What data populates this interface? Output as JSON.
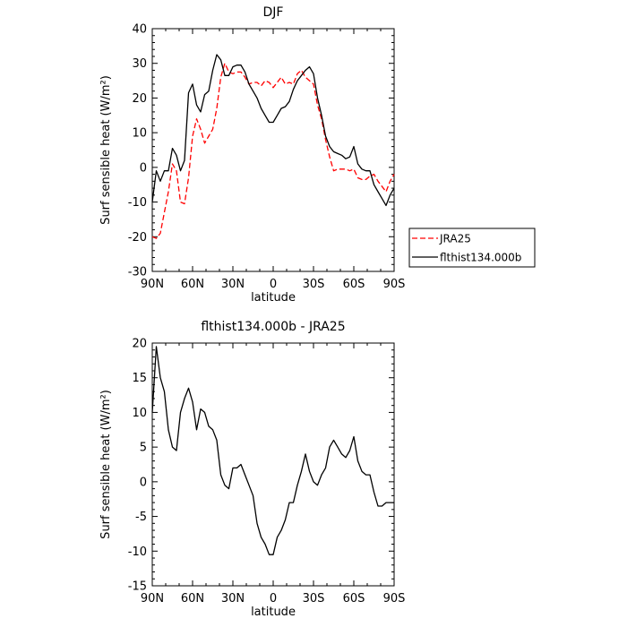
{
  "chart_data": [
    {
      "type": "line",
      "title": "DJF",
      "xlabel": "latitude",
      "ylabel": "Surf sensible heat (W/m²)",
      "xticklabels": [
        "90N",
        "60N",
        "30N",
        "0",
        "30S",
        "60S",
        "90S"
      ],
      "xlim": [
        90,
        -90
      ],
      "ylim": [
        -30,
        40
      ],
      "yticks": [
        -30,
        -20,
        -10,
        0,
        10,
        20,
        30,
        40
      ],
      "legend": "outside-right",
      "series": [
        {
          "name": "JRA25",
          "color": "#ff0000",
          "dash": "dashed",
          "x": [
            90,
            87,
            84,
            81,
            78,
            75,
            72,
            69,
            66,
            63,
            60,
            57,
            54,
            51,
            48,
            45,
            42,
            39,
            36,
            33,
            30,
            27,
            24,
            21,
            18,
            15,
            12,
            9,
            6,
            3,
            0,
            -3,
            -6,
            -9,
            -12,
            -15,
            -18,
            -21,
            -24,
            -27,
            -30,
            -33,
            -36,
            -39,
            -42,
            -45,
            -48,
            -51,
            -54,
            -57,
            -60,
            -63,
            -66,
            -69,
            -72,
            -75,
            -78,
            -81,
            -84,
            -87,
            -90
          ],
          "y": [
            -20,
            -20.5,
            -19,
            -13,
            -7,
            1,
            -1,
            -10,
            -10.5,
            -3,
            9,
            14,
            11,
            7,
            9,
            11,
            17,
            26,
            30,
            27.5,
            27,
            27.5,
            27.5,
            26,
            24,
            24.5,
            24.5,
            23.5,
            25,
            24.5,
            23,
            24.5,
            26,
            24,
            24.5,
            24,
            27,
            28,
            26,
            25,
            24,
            18,
            14,
            8,
            3,
            -1,
            -0.5,
            -0.5,
            -0.5,
            -1,
            -0.5,
            -3,
            -3.5,
            -3.5,
            -2.5,
            -2,
            -4,
            -5.5,
            -7,
            -4,
            -2
          ]
        },
        {
          "name": "flthist134.000b",
          "color": "#000000",
          "dash": "solid",
          "x": [
            90,
            87,
            84,
            81,
            78,
            75,
            72,
            69,
            66,
            63,
            60,
            57,
            54,
            51,
            48,
            45,
            42,
            39,
            36,
            33,
            30,
            27,
            24,
            21,
            18,
            15,
            12,
            9,
            6,
            3,
            0,
            -3,
            -6,
            -9,
            -12,
            -15,
            -18,
            -21,
            -24,
            -27,
            -30,
            -33,
            -36,
            -39,
            -42,
            -45,
            -48,
            -51,
            -54,
            -57,
            -60,
            -63,
            -66,
            -69,
            -72,
            -75,
            -78,
            -81,
            -84,
            -87,
            -90
          ],
          "y": [
            -10,
            -1,
            -4,
            -1,
            -1,
            5.5,
            3.5,
            -1,
            2,
            21.5,
            24,
            18,
            16,
            21,
            22,
            28,
            32.5,
            31,
            26.5,
            26.5,
            29,
            29.5,
            29.5,
            27.5,
            24,
            22,
            20,
            17,
            15,
            13,
            13,
            15,
            17,
            17.5,
            19,
            22.5,
            25,
            26.5,
            28,
            29,
            27,
            20,
            15,
            9,
            6,
            4.5,
            4,
            3.5,
            2.5,
            3,
            6,
            1,
            -0.5,
            -1,
            -1,
            -5,
            -7,
            -9,
            -11,
            -8,
            -6
          ]
        }
      ]
    },
    {
      "type": "line",
      "title": "flthist134.000b - JRA25",
      "xlabel": "latitude",
      "ylabel": "Surf sensible heat (W/m²)",
      "xticklabels": [
        "90N",
        "60N",
        "30N",
        "0",
        "30S",
        "60S",
        "90S"
      ],
      "xlim": [
        90,
        -90
      ],
      "ylim": [
        -15,
        20
      ],
      "yticks": [
        -15,
        -10,
        -5,
        0,
        5,
        10,
        15,
        20
      ],
      "series": [
        {
          "color": "#000000",
          "dash": "solid",
          "x": [
            90,
            87,
            84,
            81,
            78,
            75,
            72,
            69,
            66,
            63,
            60,
            57,
            54,
            51,
            48,
            45,
            42,
            39,
            36,
            33,
            30,
            27,
            24,
            21,
            18,
            15,
            12,
            9,
            6,
            3,
            0,
            -3,
            -6,
            -9,
            -12,
            -15,
            -18,
            -21,
            -24,
            -27,
            -30,
            -33,
            -36,
            -39,
            -42,
            -45,
            -48,
            -51,
            -54,
            -57,
            -60,
            -63,
            -66,
            -69,
            -72,
            -75,
            -78,
            -81,
            -84,
            -87,
            -90
          ],
          "y": [
            10,
            19.5,
            15,
            13,
            7.5,
            5,
            4.5,
            10,
            12,
            13.5,
            11.5,
            7.5,
            10.5,
            10,
            8,
            7.5,
            6,
            1,
            -0.5,
            -1,
            2,
            2,
            2.5,
            1,
            -0.5,
            -2,
            -6,
            -8,
            -9,
            -10.5,
            -10.5,
            -8,
            -7,
            -5.5,
            -3,
            -3,
            -0.5,
            1.5,
            4,
            1.5,
            0,
            -0.5,
            1,
            2,
            5,
            6,
            5,
            4,
            3.5,
            4.5,
            6.5,
            3,
            1.5,
            1,
            1,
            -1.5,
            -3.5,
            -3.5,
            -3,
            -3,
            -3
          ]
        }
      ]
    }
  ]
}
